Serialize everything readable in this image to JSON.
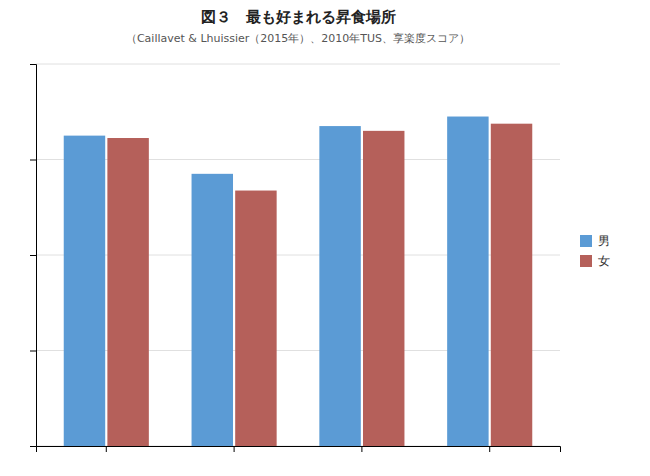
{
  "chart_data": {
    "type": "bar",
    "title": "図３　最も好まれる昇食場所",
    "subtitle": "（Caillavet & Lhuissier（2015年）、2010年TUS、享楽度スコア）",
    "categories": [
      null,
      null,
      null,
      null
    ],
    "series": [
      {
        "name": "男",
        "color": "#5b9bd5",
        "values": [
          6.5,
          5.7,
          6.7,
          6.9
        ]
      },
      {
        "name": "女",
        "color": "#b5605a",
        "values": [
          6.45,
          5.35,
          6.6,
          6.75
        ]
      }
    ],
    "ylim": [
      0,
      8
    ],
    "yticks": [
      0,
      2,
      4,
      6,
      8
    ],
    "grid": true,
    "legend": "right",
    "tick_labels": false
  }
}
